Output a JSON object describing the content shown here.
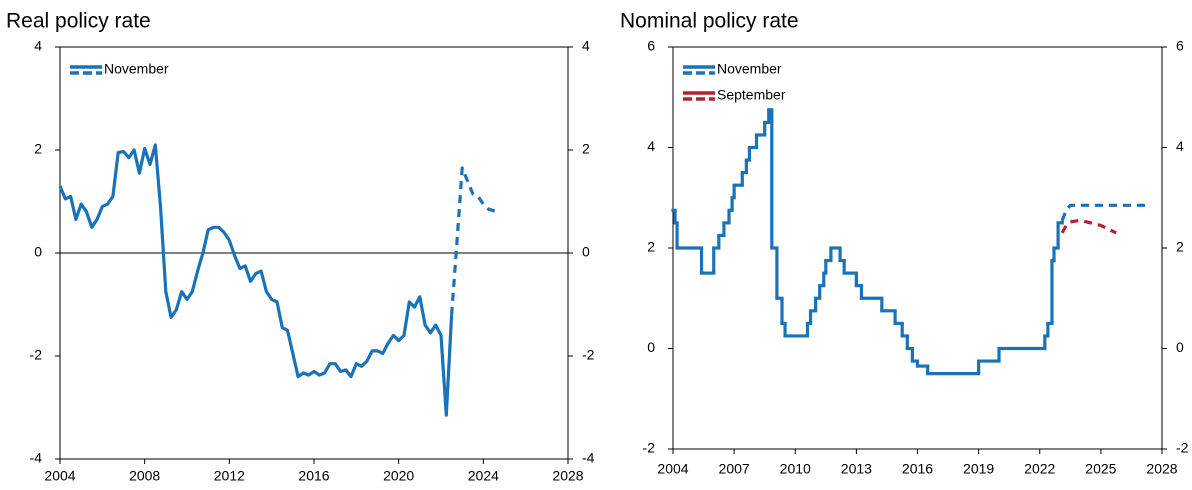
{
  "chart_data": [
    {
      "type": "line",
      "title": "Real policy rate",
      "xlim": [
        2004,
        2028
      ],
      "xticks": [
        2004,
        2008,
        2012,
        2016,
        2020,
        2024,
        2028
      ],
      "ylim": [
        -4,
        4
      ],
      "yticks": [
        -4,
        -2,
        0,
        2,
        4
      ],
      "y2lim": [
        -4,
        4
      ],
      "y2ticks": [
        -4,
        -2,
        0,
        2,
        4
      ],
      "zero_line": true,
      "series": [
        {
          "name": "November",
          "color": "#1a72b8",
          "x": [
            2004.0,
            2004.25,
            2004.5,
            2004.75,
            2005.0,
            2005.25,
            2005.5,
            2005.75,
            2006.0,
            2006.25,
            2006.5,
            2006.75,
            2007.0,
            2007.25,
            2007.5,
            2007.75,
            2008.0,
            2008.25,
            2008.5,
            2008.75,
            2009.0,
            2009.25,
            2009.5,
            2009.75,
            2010.0,
            2010.25,
            2010.5,
            2010.75,
            2011.0,
            2011.25,
            2011.5,
            2011.75,
            2012.0,
            2012.25,
            2012.5,
            2012.75,
            2013.0,
            2013.25,
            2013.5,
            2013.75,
            2014.0,
            2014.25,
            2014.5,
            2014.75,
            2015.0,
            2015.25,
            2015.5,
            2015.75,
            2016.0,
            2016.25,
            2016.5,
            2016.75,
            2017.0,
            2017.25,
            2017.5,
            2017.75,
            2018.0,
            2018.25,
            2018.5,
            2018.75,
            2019.0,
            2019.25,
            2019.5,
            2019.75,
            2020.0,
            2020.25,
            2020.5,
            2020.75,
            2021.0,
            2021.25,
            2021.5,
            2021.75,
            2022.0,
            2022.25,
            2022.5
          ],
          "values": [
            1.3,
            1.05,
            1.1,
            0.65,
            0.95,
            0.8,
            0.5,
            0.65,
            0.9,
            0.95,
            1.1,
            1.95,
            1.97,
            1.85,
            2.0,
            1.55,
            2.03,
            1.72,
            2.1,
            0.9,
            -0.75,
            -1.25,
            -1.1,
            -0.75,
            -0.9,
            -0.75,
            -0.35,
            0.0,
            0.45,
            0.5,
            0.5,
            0.4,
            0.25,
            -0.05,
            -0.3,
            -0.25,
            -0.55,
            -0.4,
            -0.35,
            -0.75,
            -0.9,
            -0.95,
            -1.45,
            -1.5,
            -1.95,
            -2.4,
            -2.33,
            -2.37,
            -2.3,
            -2.37,
            -2.33,
            -2.15,
            -2.15,
            -2.3,
            -2.27,
            -2.4,
            -2.15,
            -2.2,
            -2.1,
            -1.9,
            -1.9,
            -1.95,
            -1.75,
            -1.6,
            -1.7,
            -1.6,
            -0.95,
            -1.05,
            -0.85,
            -1.4,
            -1.55,
            -1.4,
            -1.6,
            -3.15,
            -1.2
          ],
          "projection": {
            "x": [
              2022.5,
              2022.75,
              2023.0,
              2023.25,
              2023.5,
              2023.75,
              2024.0,
              2024.25,
              2024.5,
              2024.75
            ],
            "values": [
              -1.2,
              0.2,
              1.65,
              1.4,
              1.15,
              1.1,
              0.95,
              0.85,
              0.82,
              0.8
            ]
          }
        }
      ]
    },
    {
      "type": "step",
      "title": "Nominal policy rate",
      "xlim": [
        2004,
        2028
      ],
      "xticks": [
        2004,
        2007,
        2010,
        2013,
        2016,
        2019,
        2022,
        2025,
        2028
      ],
      "ylim": [
        -2,
        6
      ],
      "yticks": [
        -2,
        0,
        2,
        4,
        6
      ],
      "y2lim": [
        -2,
        6
      ],
      "y2ticks": [
        -2,
        0,
        2,
        4,
        6
      ],
      "zero_line": false,
      "series": [
        {
          "name": "November",
          "color": "#1a72b8",
          "x": [
            2004.0,
            2004.1,
            2004.2,
            2005.4,
            2006.0,
            2006.25,
            2006.5,
            2006.75,
            2006.9,
            2007.0,
            2007.4,
            2007.6,
            2007.75,
            2008.1,
            2008.5,
            2008.7,
            2008.85,
            2009.1,
            2009.35,
            2009.5,
            2010.6,
            2010.75,
            2011.0,
            2011.2,
            2011.4,
            2011.5,
            2011.75,
            2012.2,
            2012.4,
            2013.0,
            2013.25,
            2014.25,
            2014.9,
            2015.25,
            2015.5,
            2015.75,
            2016.0,
            2016.5,
            2019.0,
            2020.0,
            2022.25,
            2022.4,
            2022.6,
            2022.7,
            2022.9
          ],
          "values": [
            2.75,
            2.5,
            2.0,
            1.5,
            2.0,
            2.25,
            2.5,
            2.75,
            3.0,
            3.25,
            3.5,
            3.75,
            4.0,
            4.25,
            4.5,
            4.75,
            2.0,
            1.0,
            0.5,
            0.25,
            0.5,
            0.75,
            1.0,
            1.25,
            1.5,
            1.75,
            2.0,
            1.75,
            1.5,
            1.25,
            1.0,
            0.75,
            0.5,
            0.25,
            0.0,
            -0.25,
            -0.35,
            -0.5,
            -0.25,
            0.0,
            0.25,
            0.5,
            1.75,
            2.0,
            2.5
          ],
          "projection": {
            "x": [
              2023.1,
              2023.3,
              2023.5,
              2024.0,
              2025.0,
              2026.0,
              2027.25
            ],
            "values": [
              2.55,
              2.75,
              2.85,
              2.85,
              2.85,
              2.85,
              2.85
            ]
          }
        },
        {
          "name": "September",
          "color": "#b22234",
          "projection": {
            "x": [
              2023.1,
              2023.3,
              2023.5,
              2024.0,
              2024.5,
              2025.0,
              2025.5,
              2025.75
            ],
            "values": [
              2.3,
              2.45,
              2.52,
              2.55,
              2.5,
              2.45,
              2.35,
              2.3
            ]
          }
        }
      ]
    }
  ]
}
